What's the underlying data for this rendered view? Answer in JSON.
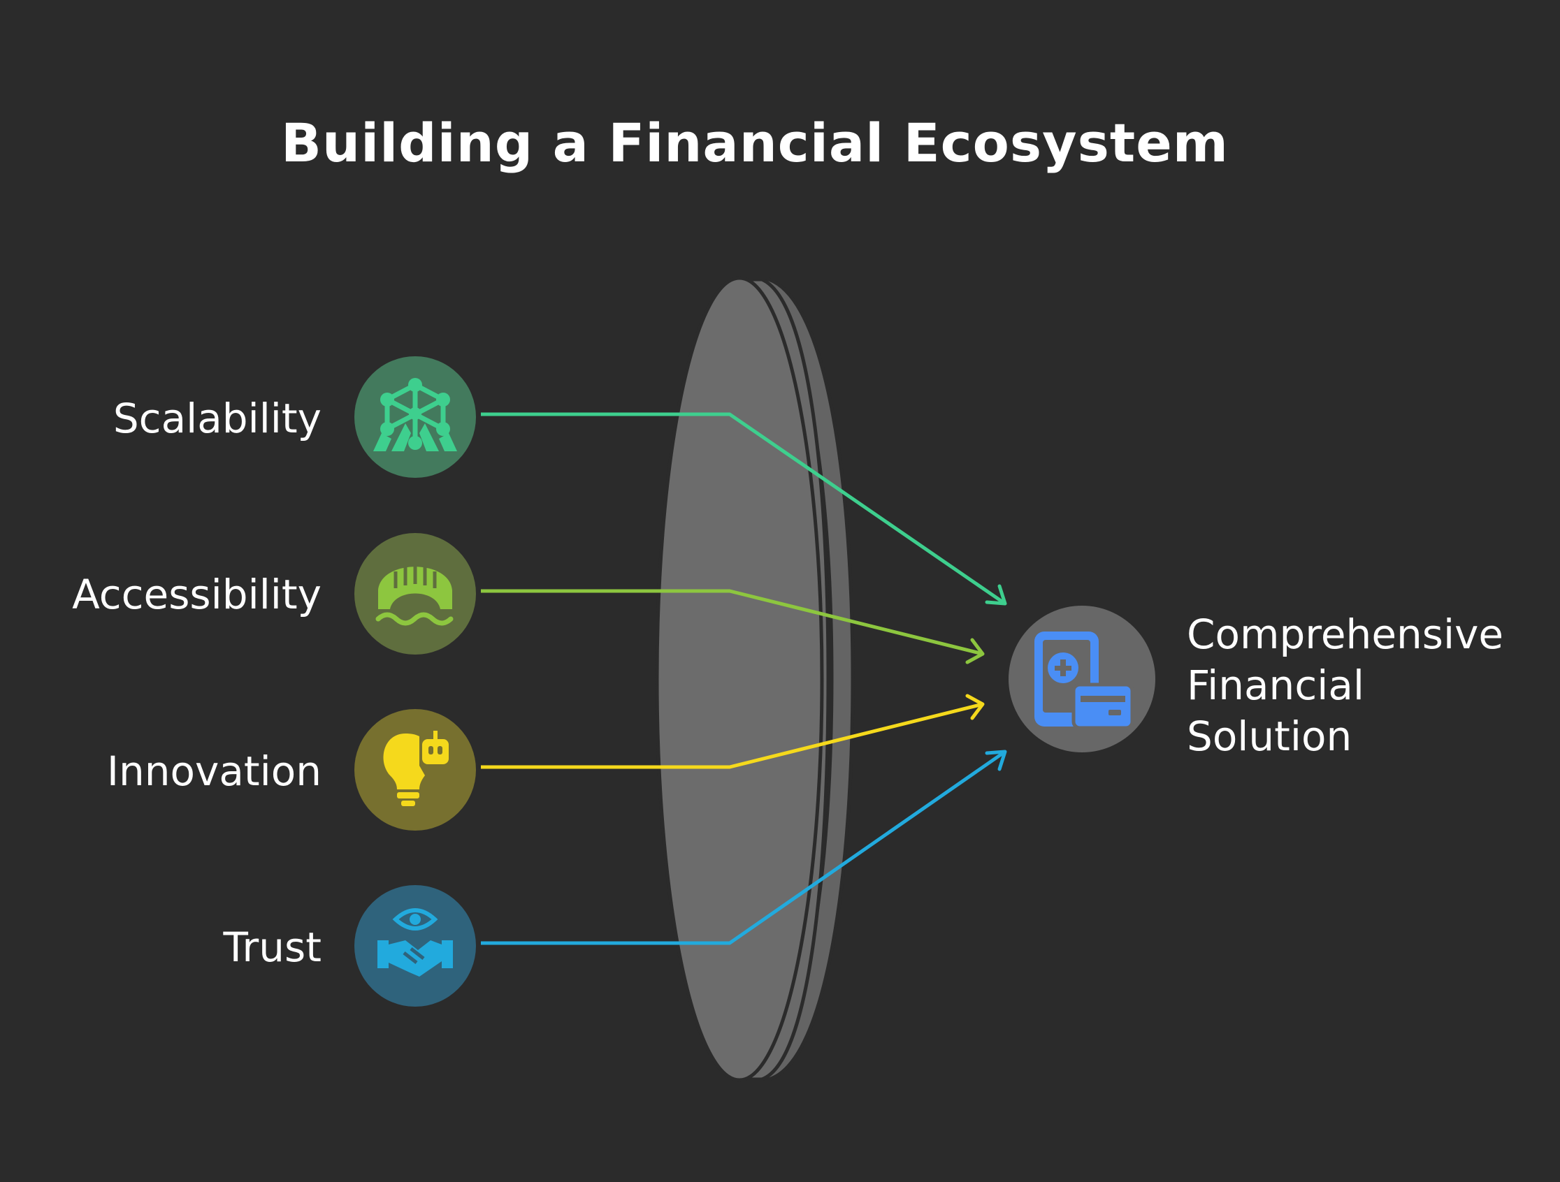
{
  "title": "Building a Financial Ecosystem",
  "inputs": [
    {
      "label": "Scalability",
      "icon": "ferris-wheel-icon",
      "color": "#3ecf8e",
      "circle": "#437a5d"
    },
    {
      "label": "Accessibility",
      "icon": "bridge-icon",
      "color": "#8dc63f",
      "circle": "#5f6e3e"
    },
    {
      "label": "Innovation",
      "icon": "lightbulb-robot-icon",
      "color": "#f5d91c",
      "circle": "#77702f"
    },
    {
      "label": "Trust",
      "icon": "handshake-eye-icon",
      "color": "#22aadd",
      "circle": "#2f637c"
    }
  ],
  "output": {
    "lines": [
      "Comprehensive",
      "Financial",
      "Solution"
    ],
    "icon": "mobile-card-icon",
    "color": "#4a8ef5"
  },
  "lens": {
    "color": "#6a6a6a"
  }
}
